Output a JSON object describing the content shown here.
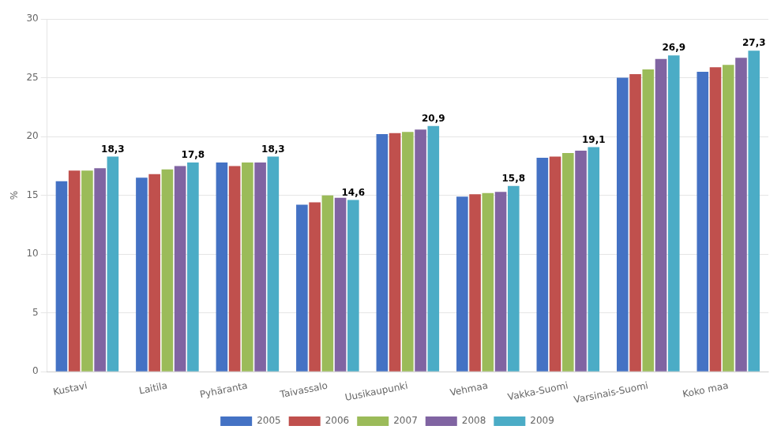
{
  "chart_data": {
    "type": "bar",
    "categories": [
      "Kustavi",
      "Laitila",
      "Pyhäranta",
      "Taivassalo",
      "Uusikaupunki",
      "Vehmaa",
      "Vakka-Suomi",
      "Varsinais-Suomi",
      "Koko maa"
    ],
    "series": [
      {
        "name": "2005",
        "color": "#4472C4",
        "values": [
          16.2,
          16.5,
          17.8,
          14.2,
          20.2,
          14.9,
          18.2,
          25.0,
          25.5
        ]
      },
      {
        "name": "2006",
        "color": "#C0504D",
        "values": [
          17.1,
          16.8,
          17.5,
          14.4,
          20.3,
          15.1,
          18.3,
          25.3,
          25.9
        ]
      },
      {
        "name": "2007",
        "color": "#9BBB59",
        "values": [
          17.1,
          17.2,
          17.8,
          15.0,
          20.4,
          15.2,
          18.6,
          25.7,
          26.1
        ]
      },
      {
        "name": "2008",
        "color": "#8064A2",
        "values": [
          17.3,
          17.5,
          17.8,
          14.8,
          20.6,
          15.3,
          18.8,
          26.6,
          26.7
        ]
      },
      {
        "name": "2009",
        "color": "#4BACC6",
        "values": [
          18.3,
          17.8,
          18.3,
          14.6,
          20.9,
          15.8,
          19.1,
          26.9,
          27.3
        ],
        "value_labels": [
          "18,3",
          "17,8",
          "18,3",
          "14,6",
          "20,9",
          "15,8",
          "19,1",
          "26,9",
          "27,3"
        ]
      }
    ],
    "ylabel": "%",
    "ylim": [
      0,
      30
    ],
    "yticks": [
      0,
      5,
      10,
      15,
      20,
      25,
      30
    ],
    "grid": true,
    "legend": "bottom"
  }
}
